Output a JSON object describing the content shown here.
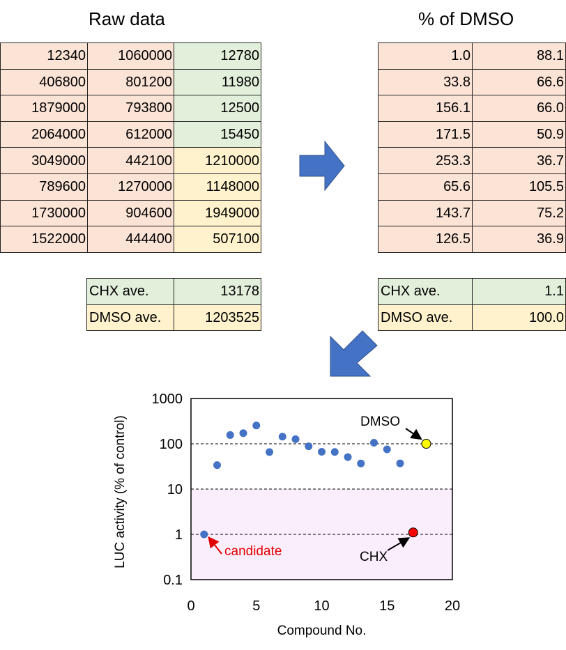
{
  "raw_title": "Raw data",
  "pct_title": "% of DMSO",
  "raw_rows": [
    {
      "c0": "12340",
      "c1": "1060000",
      "c2": "12780",
      "c2_color": "green"
    },
    {
      "c0": "406800",
      "c1": "801200",
      "c2": "11980",
      "c2_color": "green"
    },
    {
      "c0": "1879000",
      "c1": "793800",
      "c2": "12500",
      "c2_color": "green"
    },
    {
      "c0": "2064000",
      "c1": "612000",
      "c2": "15450",
      "c2_color": "green"
    },
    {
      "c0": "3049000",
      "c1": "442100",
      "c2": "1210000",
      "c2_color": "yellow"
    },
    {
      "c0": "789600",
      "c1": "1270000",
      "c2": "1148000",
      "c2_color": "yellow"
    },
    {
      "c0": "1730000",
      "c1": "904600",
      "c2": "1949000",
      "c2_color": "yellow"
    },
    {
      "c0": "1522000",
      "c1": "444400",
      "c2": "507100",
      "c2_color": "yellow"
    }
  ],
  "pct_rows": [
    {
      "c0": "1.0",
      "c1": "88.1"
    },
    {
      "c0": "33.8",
      "c1": "66.6"
    },
    {
      "c0": "156.1",
      "c1": "66.0"
    },
    {
      "c0": "171.5",
      "c1": "50.9"
    },
    {
      "c0": "253.3",
      "c1": "36.7"
    },
    {
      "c0": "65.6",
      "c1": "105.5"
    },
    {
      "c0": "143.7",
      "c1": "75.2"
    },
    {
      "c0": "126.5",
      "c1": "36.9"
    }
  ],
  "raw_avg": {
    "chx_label": "CHX ave.",
    "chx_value": "13178",
    "dmso_label": "DMSO ave.",
    "dmso_value": "1203525"
  },
  "pct_avg": {
    "chx_label": "CHX ave.",
    "chx_value": "1.1",
    "dmso_label": "DMSO ave.",
    "dmso_value": "100.0"
  },
  "colors": {
    "salmon": "#fbe3d6",
    "green": "#e2efda",
    "yellow": "#fff2cc",
    "arrow": "#4472c4",
    "point": "#4472c4",
    "dmso_point": "#ffff00",
    "chx_point": "#ff0000",
    "shade": "#fbeefc",
    "candidate_text": "#e00000"
  },
  "chart_data": {
    "type": "scatter",
    "xlabel": "Compound No.",
    "ylabel": "LUC activity (% of control)",
    "xlim": [
      0,
      20
    ],
    "ylim": [
      0.1,
      1000
    ],
    "y_scale": "log",
    "x_ticks": [
      "0",
      "5",
      "10",
      "15",
      "20"
    ],
    "y_ticks": [
      "0.1",
      "1",
      "10",
      "100",
      "1000"
    ],
    "dashed_lines_at": [
      1,
      10,
      100
    ],
    "shaded_region": [
      0.1,
      10
    ],
    "series": [
      {
        "points": [
          [
            1,
            1.0
          ],
          [
            2,
            33.8
          ],
          [
            3,
            156.1
          ],
          [
            4,
            171.5
          ],
          [
            5,
            253.3
          ],
          [
            6,
            65.6
          ],
          [
            7,
            143.7
          ],
          [
            8,
            126.5
          ],
          [
            9,
            88.1
          ],
          [
            10,
            66.6
          ],
          [
            11,
            66.0
          ],
          [
            12,
            50.9
          ],
          [
            13,
            36.7
          ],
          [
            14,
            105.5
          ],
          [
            15,
            75.2
          ],
          [
            16,
            36.9
          ]
        ]
      },
      {
        "name": "DMSO",
        "points": [
          [
            18,
            100.0
          ]
        ]
      },
      {
        "name": "CHX",
        "points": [
          [
            17,
            1.1
          ]
        ]
      }
    ],
    "annotations": {
      "candidate": "candidate",
      "dmso": "DMSO",
      "chx": "CHX"
    }
  }
}
